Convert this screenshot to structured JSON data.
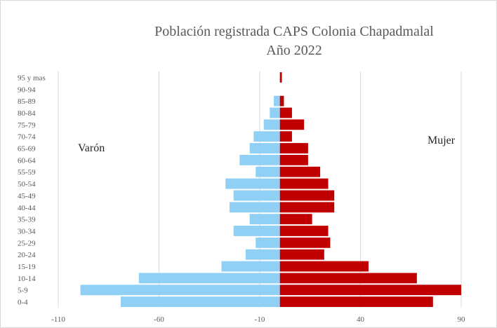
{
  "chart_data": {
    "type": "bar",
    "orientation": "horizontal",
    "title": "Población registrada CAPS Colonia Chapadmalal",
    "subtitle": "Año 2022",
    "categories": [
      "0-4",
      "5-9",
      "10-14",
      "15-19",
      "20-24",
      "25-29",
      "30-34",
      "35-39",
      "40-44",
      "45-49",
      "50-54",
      "55-59",
      "60-64",
      "65-69",
      "70-74",
      "75-79",
      "80-84",
      "85-89",
      "90-94",
      "95 y mas"
    ],
    "series": [
      {
        "name": "Varón",
        "color": "#8fd0f4",
        "values": [
          -79,
          -99,
          -70,
          -29,
          -17,
          -12,
          -23,
          -15,
          -25,
          -23,
          -27,
          -12,
          -20,
          -15,
          -13,
          -8,
          -5,
          -3,
          0,
          0
        ]
      },
      {
        "name": "Mujer",
        "color": "#c00000",
        "values": [
          76,
          90,
          68,
          44,
          22,
          25,
          24,
          16,
          27,
          27,
          24,
          20,
          14,
          14,
          6,
          12,
          6,
          2,
          0,
          1
        ]
      }
    ],
    "xlim": [
      -110,
      90
    ],
    "xticks": [
      -110,
      -60,
      -10,
      40,
      90
    ],
    "grid": true,
    "xlabel": "",
    "ylabel": ""
  }
}
